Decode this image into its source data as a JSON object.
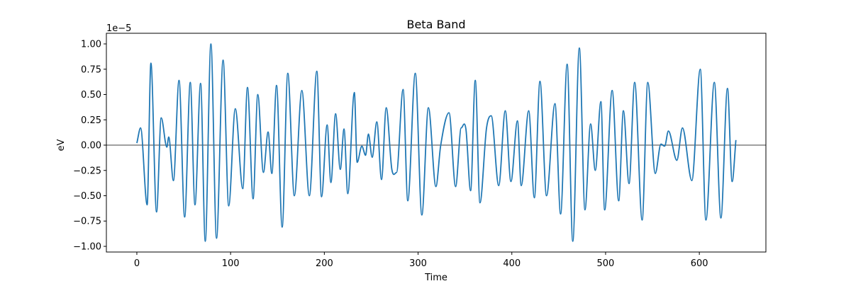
{
  "chart_data": {
    "type": "line",
    "title": "Beta Band",
    "xlabel": "Time",
    "ylabel": "eV",
    "offset_text": "1e−5",
    "color": "#1f77b4",
    "hline": 0,
    "x": [
      0,
      4,
      11,
      15,
      21,
      26,
      32,
      34,
      39,
      45,
      51,
      57,
      62,
      68,
      73,
      79,
      85,
      92,
      98,
      105,
      113,
      118,
      124,
      129,
      135,
      140,
      144,
      149,
      155,
      161,
      168,
      176,
      184,
      192,
      197,
      203,
      207,
      212,
      217,
      221,
      225,
      232,
      235,
      240,
      244,
      247,
      251,
      256,
      261,
      266,
      272,
      277,
      284,
      289,
      297,
      304,
      311,
      319,
      324,
      333,
      340,
      346,
      351,
      356,
      361,
      366,
      373,
      378,
      386,
      393,
      399,
      406,
      410,
      418,
      424,
      430,
      437,
      446,
      452,
      459,
      465,
      472,
      478,
      484,
      489,
      495,
      499,
      507,
      514,
      519,
      525,
      531,
      539,
      545,
      553,
      559,
      563,
      567,
      576,
      582,
      592,
      601,
      607,
      616,
      623,
      630,
      635,
      639
    ],
    "values": [
      0.02,
      0.17,
      -0.59,
      0.81,
      -0.66,
      0.27,
      -0.02,
      0.08,
      -0.35,
      0.64,
      -0.71,
      0.62,
      -0.59,
      0.61,
      -0.95,
      1.0,
      -0.92,
      0.84,
      -0.6,
      0.36,
      -0.43,
      0.57,
      -0.53,
      0.5,
      -0.27,
      0.13,
      -0.28,
      0.59,
      -0.81,
      0.71,
      -0.5,
      0.54,
      -0.5,
      0.73,
      -0.51,
      0.2,
      -0.37,
      0.31,
      -0.24,
      0.16,
      -0.48,
      0.52,
      -0.17,
      -0.01,
      -0.1,
      0.11,
      -0.12,
      0.23,
      -0.34,
      0.37,
      -0.24,
      -0.27,
      0.55,
      -0.55,
      0.71,
      -0.69,
      0.37,
      -0.41,
      -0.01,
      0.32,
      -0.41,
      0.17,
      0.16,
      -0.45,
      0.64,
      -0.57,
      0.17,
      0.29,
      -0.4,
      0.34,
      -0.36,
      0.24,
      -0.4,
      0.34,
      -0.52,
      0.63,
      -0.5,
      0.41,
      -0.68,
      0.8,
      -0.95,
      0.96,
      -0.64,
      0.21,
      -0.25,
      0.43,
      -0.64,
      0.54,
      -0.55,
      0.34,
      -0.38,
      0.62,
      -0.74,
      0.62,
      -0.28,
      0.01,
      -0.01,
      0.14,
      -0.15,
      0.17,
      -0.35,
      0.75,
      -0.74,
      0.62,
      -0.72,
      0.56,
      -0.36,
      0.05
    ],
    "xlim": [
      -32.5,
      671
    ],
    "ylim": [
      -1.056,
      1.105
    ],
    "xticks": [
      0,
      100,
      200,
      300,
      400,
      500,
      600
    ],
    "yticks": [
      {
        "value": -1,
        "label": "−1.00"
      },
      {
        "value": -0.75,
        "label": "−0.75"
      },
      {
        "value": -0.5,
        "label": "−0.50"
      },
      {
        "value": -0.25,
        "label": "−0.25"
      },
      {
        "value": 0,
        "label": "0.00"
      },
      0.25,
      {
        "value": 0.5,
        "label": "0.50"
      },
      0.75,
      {
        "value": 1,
        "label": "1.00"
      }
    ]
  }
}
